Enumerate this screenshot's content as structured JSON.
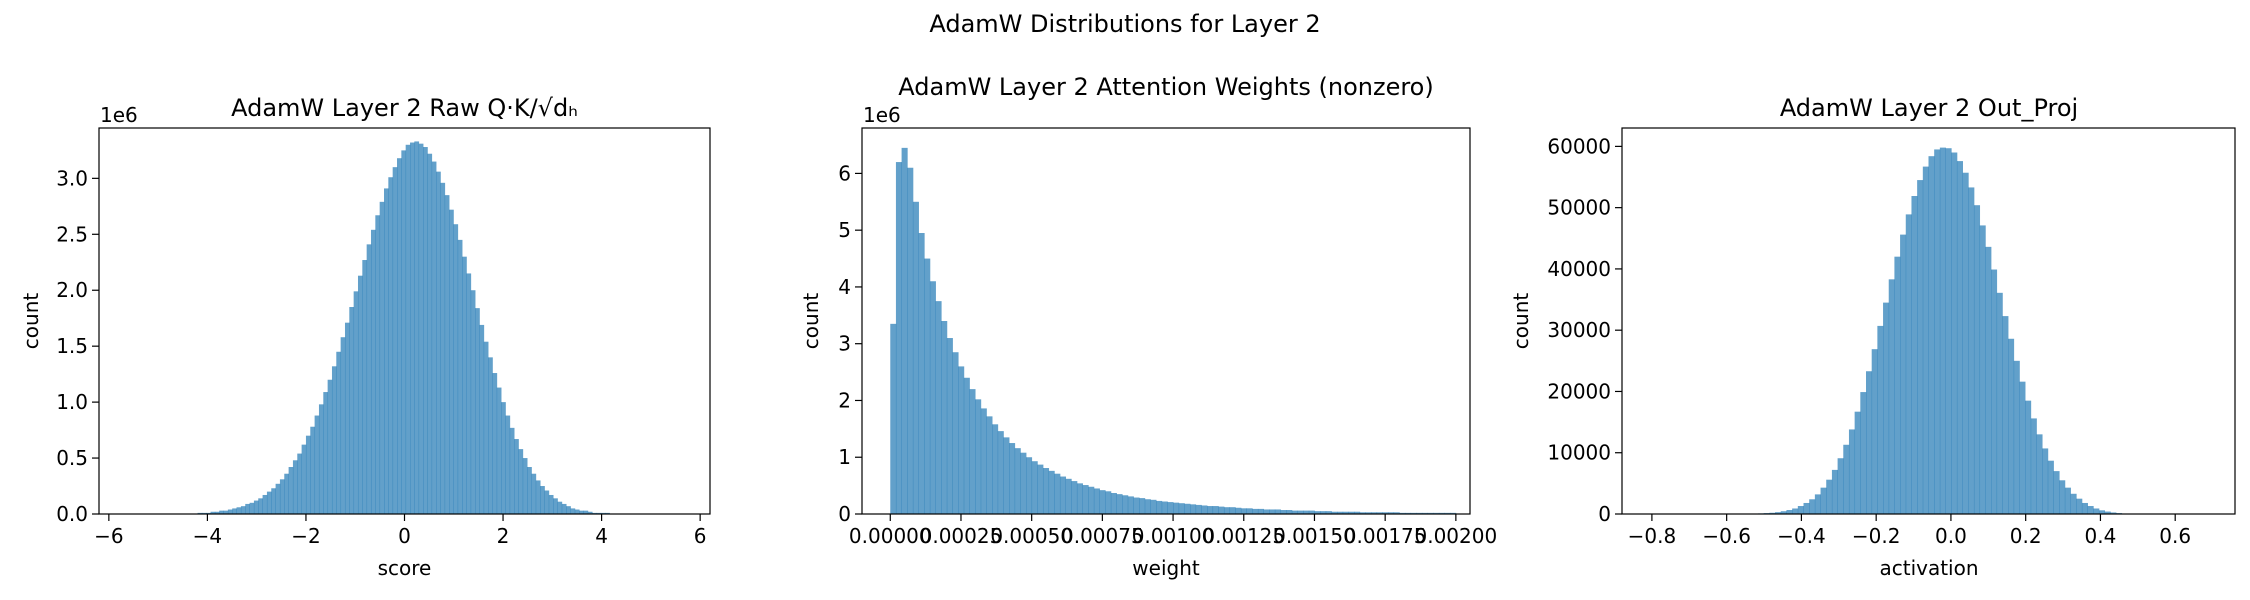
{
  "figure": {
    "suptitle": "AdamW Distributions for Layer 2"
  },
  "colors": {
    "bar": "#1f77b4",
    "bar_alpha": 0.7
  },
  "chart_data": [
    {
      "type": "bar",
      "title": "AdamW Layer 2 Raw Q·K/√dₕ",
      "xlabel": "score",
      "ylabel": "count",
      "offset_text": "1e6",
      "xlim": [
        -6.2,
        6.2
      ],
      "ylim": [
        0,
        3.45
      ],
      "xticks": [
        -6,
        -4,
        -2,
        0,
        2,
        4,
        6
      ],
      "xtick_labels": [
        "−6",
        "−4",
        "−2",
        "0",
        "2",
        "4",
        "6"
      ],
      "yticks": [
        0,
        0.5,
        1.0,
        1.5,
        2.0,
        2.5,
        3.0
      ],
      "ytick_labels": [
        "0.0",
        "0.5",
        "1.0",
        "1.5",
        "2.0",
        "2.5",
        "3.0"
      ],
      "bins": {
        "start": -4.2,
        "end": 4.6,
        "count": 100
      },
      "values": [
        0.01,
        0.01,
        0.01,
        0.02,
        0.02,
        0.03,
        0.03,
        0.04,
        0.05,
        0.06,
        0.07,
        0.09,
        0.1,
        0.12,
        0.14,
        0.17,
        0.2,
        0.23,
        0.27,
        0.31,
        0.36,
        0.42,
        0.48,
        0.54,
        0.62,
        0.7,
        0.78,
        0.88,
        0.98,
        1.09,
        1.2,
        1.32,
        1.45,
        1.58,
        1.71,
        1.85,
        1.99,
        2.13,
        2.27,
        2.41,
        2.54,
        2.67,
        2.79,
        2.91,
        3.01,
        3.1,
        3.18,
        3.25,
        3.3,
        3.32,
        3.33,
        3.31,
        3.28,
        3.22,
        3.15,
        3.06,
        2.96,
        2.85,
        2.72,
        2.59,
        2.45,
        2.3,
        2.15,
        2.0,
        1.84,
        1.69,
        1.54,
        1.4,
        1.26,
        1.13,
        1.0,
        0.88,
        0.77,
        0.67,
        0.58,
        0.5,
        0.42,
        0.36,
        0.3,
        0.25,
        0.21,
        0.17,
        0.14,
        0.11,
        0.09,
        0.07,
        0.05,
        0.04,
        0.03,
        0.03,
        0.02,
        0.01,
        0.01,
        0.01,
        0.01,
        0.0,
        0.0,
        0.0,
        0.0,
        0.0
      ]
    },
    {
      "type": "bar",
      "title": "AdamW Layer 2 Attention Weights (nonzero)",
      "xlabel": "weight",
      "ylabel": "count",
      "offset_text": "1e6",
      "xlim": [
        -0.0001,
        0.00205
      ],
      "ylim": [
        0,
        6.8
      ],
      "xticks": [
        0,
        0.00025,
        0.0005,
        0.00075,
        0.001,
        0.00125,
        0.0015,
        0.00175,
        0.002
      ],
      "xtick_labels": [
        "0.00000",
        "0.00025",
        "0.00050",
        "0.00075",
        "0.00100",
        "0.00125",
        "0.00150",
        "0.00175",
        "0.00200"
      ],
      "yticks": [
        0,
        1,
        2,
        3,
        4,
        5,
        6
      ],
      "ytick_labels": [
        "0",
        "1",
        "2",
        "3",
        "4",
        "5",
        "6"
      ],
      "bins": {
        "start": 0,
        "end": 0.002,
        "count": 100
      },
      "values": [
        3.35,
        6.2,
        6.45,
        6.1,
        5.5,
        4.95,
        4.5,
        4.1,
        3.75,
        3.4,
        3.1,
        2.85,
        2.6,
        2.4,
        2.2,
        2.02,
        1.86,
        1.72,
        1.58,
        1.46,
        1.35,
        1.25,
        1.16,
        1.08,
        1.0,
        0.93,
        0.87,
        0.81,
        0.76,
        0.71,
        0.66,
        0.62,
        0.58,
        0.54,
        0.51,
        0.48,
        0.45,
        0.42,
        0.4,
        0.37,
        0.35,
        0.33,
        0.31,
        0.29,
        0.28,
        0.26,
        0.25,
        0.23,
        0.22,
        0.21,
        0.2,
        0.19,
        0.18,
        0.17,
        0.16,
        0.15,
        0.14,
        0.14,
        0.13,
        0.12,
        0.12,
        0.11,
        0.1,
        0.1,
        0.09,
        0.09,
        0.08,
        0.08,
        0.08,
        0.07,
        0.07,
        0.06,
        0.06,
        0.06,
        0.06,
        0.05,
        0.05,
        0.05,
        0.04,
        0.04,
        0.04,
        0.04,
        0.04,
        0.03,
        0.03,
        0.03,
        0.03,
        0.03,
        0.03,
        0.03,
        0.02,
        0.02,
        0.02,
        0.02,
        0.02,
        0.02,
        0.02,
        0.02,
        0.02,
        0.02
      ]
    },
    {
      "type": "bar",
      "title": "AdamW Layer 2 Out_Proj",
      "xlabel": "activation",
      "ylabel": "count",
      "offset_text": "",
      "xlim": [
        -0.88,
        0.76
      ],
      "ylim": [
        0,
        63000
      ],
      "xticks": [
        -0.8,
        -0.6,
        -0.4,
        -0.2,
        0.0,
        0.2,
        0.4,
        0.6
      ],
      "xtick_labels": [
        "−0.8",
        "−0.6",
        "−0.4",
        "−0.2",
        "0.0",
        "0.2",
        "0.4",
        "0.6"
      ],
      "yticks": [
        0,
        10000,
        20000,
        30000,
        40000,
        50000,
        60000
      ],
      "ytick_labels": [
        "0",
        "10000",
        "20000",
        "30000",
        "40000",
        "50000",
        "60000"
      ],
      "bins": {
        "start": -0.82,
        "end": 0.7,
        "count": 100
      },
      "values": [
        0,
        0,
        0,
        0,
        0,
        0,
        0,
        0,
        0,
        0,
        0,
        0,
        0,
        0,
        0,
        0,
        0,
        0,
        0,
        0,
        100,
        150,
        200,
        300,
        450,
        650,
        900,
        1300,
        1800,
        2400,
        3200,
        4300,
        5600,
        7200,
        9100,
        11300,
        13800,
        16700,
        19900,
        23300,
        26900,
        30700,
        34500,
        38300,
        42000,
        45600,
        48900,
        51900,
        54500,
        56700,
        58400,
        59500,
        59800,
        59700,
        59000,
        57600,
        55700,
        53300,
        50400,
        47100,
        43600,
        39900,
        36100,
        32300,
        28600,
        25000,
        21600,
        18500,
        15600,
        13000,
        10700,
        8700,
        7000,
        5500,
        4300,
        3300,
        2500,
        1800,
        1300,
        900,
        600,
        400,
        250,
        150,
        80,
        40,
        20,
        10,
        0,
        0,
        0,
        0,
        0,
        0,
        0,
        0,
        0,
        0,
        0,
        0
      ]
    }
  ]
}
